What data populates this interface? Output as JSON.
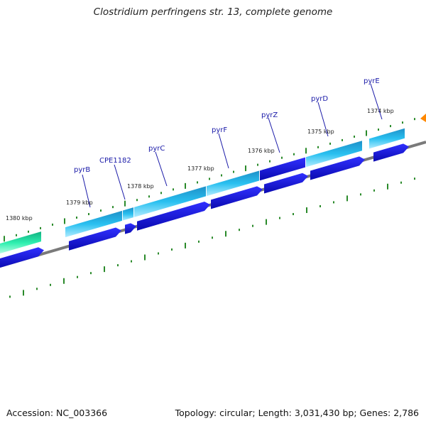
{
  "title": "Clostridium perfringens str. 13, complete genome",
  "footer": {
    "accession": "Accession: NC_003366",
    "summary": "Topology: circular; Length: 3,031,430 bp; Genes: 2,786"
  },
  "colors": {
    "gene_cyan": "#29b8e8",
    "cds_blue": "#1212d8",
    "gene_green": "#22e0a0",
    "backbone": "#888888",
    "tick_green": "#2a8a2a",
    "label_blue": "#1a1aa8",
    "marker_orange": "#ff8800"
  },
  "ruler": [
    "1380 kbp",
    "1379 kbp",
    "1378 kbp",
    "1377 kbp",
    "1376 kbp",
    "1375 kbp",
    "1374 kbp"
  ],
  "genes": [
    "pyrB",
    "CPE1182",
    "pyrC",
    "pyrF",
    "pyrZ",
    "pyrD",
    "pyrE"
  ]
}
